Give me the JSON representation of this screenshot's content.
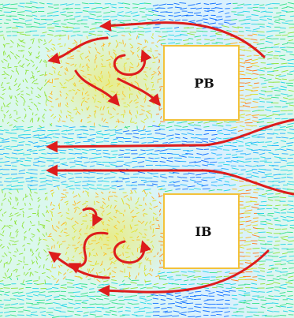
{
  "figure": {
    "blocks": [
      {
        "label": "PB"
      },
      {
        "label": "IB"
      }
    ]
  },
  "colors": {
    "arrow": "#dd1c1c",
    "block": "#ffffff",
    "vector_scale": [
      "#0f6fff",
      "#1fb0ff",
      "#22d6e6",
      "#34e08a",
      "#8ee33a",
      "#d8e02a",
      "#ffb020",
      "#ff7a1a"
    ]
  }
}
